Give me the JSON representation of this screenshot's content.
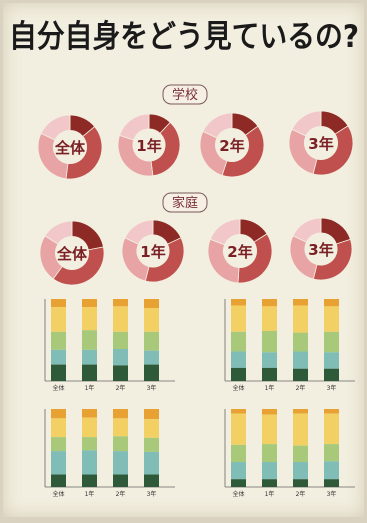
{
  "poster": {
    "title": "自分自身をどう見ているの?",
    "section_school": "学校",
    "section_home": "家庭",
    "bottom_group_labels": [
      "全体",
      "1年",
      "2年",
      "3年"
    ]
  },
  "colors": {
    "background": "#f3efe0",
    "title": "#1a1a1a",
    "donut_dark": "#8e2a25",
    "donut_mid": "#c0504d",
    "donut_light": "#e8a3a5",
    "donut_pale": "#f1c7c9",
    "bar_orange": "#e8a234",
    "bar_yellow": "#f2d064",
    "bar_green": "#a9c97a",
    "bar_teal": "#7fbdb6",
    "bar_darkgreen": "#2f5a3a"
  },
  "chart_data": [
    {
      "type": "pie",
      "group": "学校",
      "charts": [
        {
          "label": "全体",
          "values": [
            14,
            38,
            30,
            18
          ]
        },
        {
          "label": "1年",
          "values": [
            12,
            36,
            32,
            20
          ]
        },
        {
          "label": "2年",
          "values": [
            15,
            40,
            27,
            18
          ]
        },
        {
          "label": "3年",
          "values": [
            16,
            38,
            28,
            18
          ]
        }
      ]
    },
    {
      "type": "pie",
      "group": "家庭",
      "charts": [
        {
          "label": "全体",
          "values": [
            22,
            38,
            24,
            16
          ]
        },
        {
          "label": "1年",
          "values": [
            18,
            36,
            28,
            18
          ]
        },
        {
          "label": "2年",
          "values": [
            16,
            35,
            30,
            19
          ]
        },
        {
          "label": "3年",
          "values": [
            20,
            34,
            28,
            18
          ]
        }
      ]
    },
    {
      "type": "bar",
      "stacked": true,
      "categories": [
        "全体",
        "1年",
        "2年",
        "3年"
      ],
      "ylim": [
        0,
        100
      ],
      "series_values": [
        [
          10,
          10,
          9,
          11
        ],
        [
          30,
          28,
          31,
          29
        ],
        [
          22,
          24,
          21,
          23
        ],
        [
          18,
          18,
          20,
          17
        ],
        [
          20,
          20,
          19,
          20
        ]
      ]
    },
    {
      "type": "bar",
      "stacked": true,
      "categories": [
        "全体",
        "1年",
        "2年",
        "3年"
      ],
      "ylim": [
        0,
        100
      ],
      "series_values": [
        [
          8,
          9,
          8,
          9
        ],
        [
          32,
          30,
          33,
          31
        ],
        [
          24,
          26,
          23,
          25
        ],
        [
          20,
          19,
          21,
          20
        ],
        [
          16,
          16,
          15,
          15
        ]
      ]
    },
    {
      "type": "bar",
      "stacked": true,
      "categories": [
        "全体",
        "1年",
        "2年",
        "3年"
      ],
      "ylim": [
        0,
        100
      ],
      "series_values": [
        [
          12,
          11,
          12,
          13
        ],
        [
          24,
          25,
          23,
          24
        ],
        [
          18,
          17,
          19,
          18
        ],
        [
          30,
          31,
          30,
          29
        ],
        [
          16,
          16,
          16,
          16
        ]
      ]
    },
    {
      "type": "bar",
      "stacked": true,
      "categories": [
        "全体",
        "1年",
        "2年",
        "3年"
      ],
      "ylim": [
        0,
        100
      ],
      "series_values": [
        [
          6,
          7,
          6,
          6
        ],
        [
          40,
          38,
          41,
          39
        ],
        [
          22,
          23,
          21,
          22
        ],
        [
          22,
          22,
          22,
          23
        ],
        [
          10,
          10,
          10,
          10
        ]
      ]
    }
  ]
}
